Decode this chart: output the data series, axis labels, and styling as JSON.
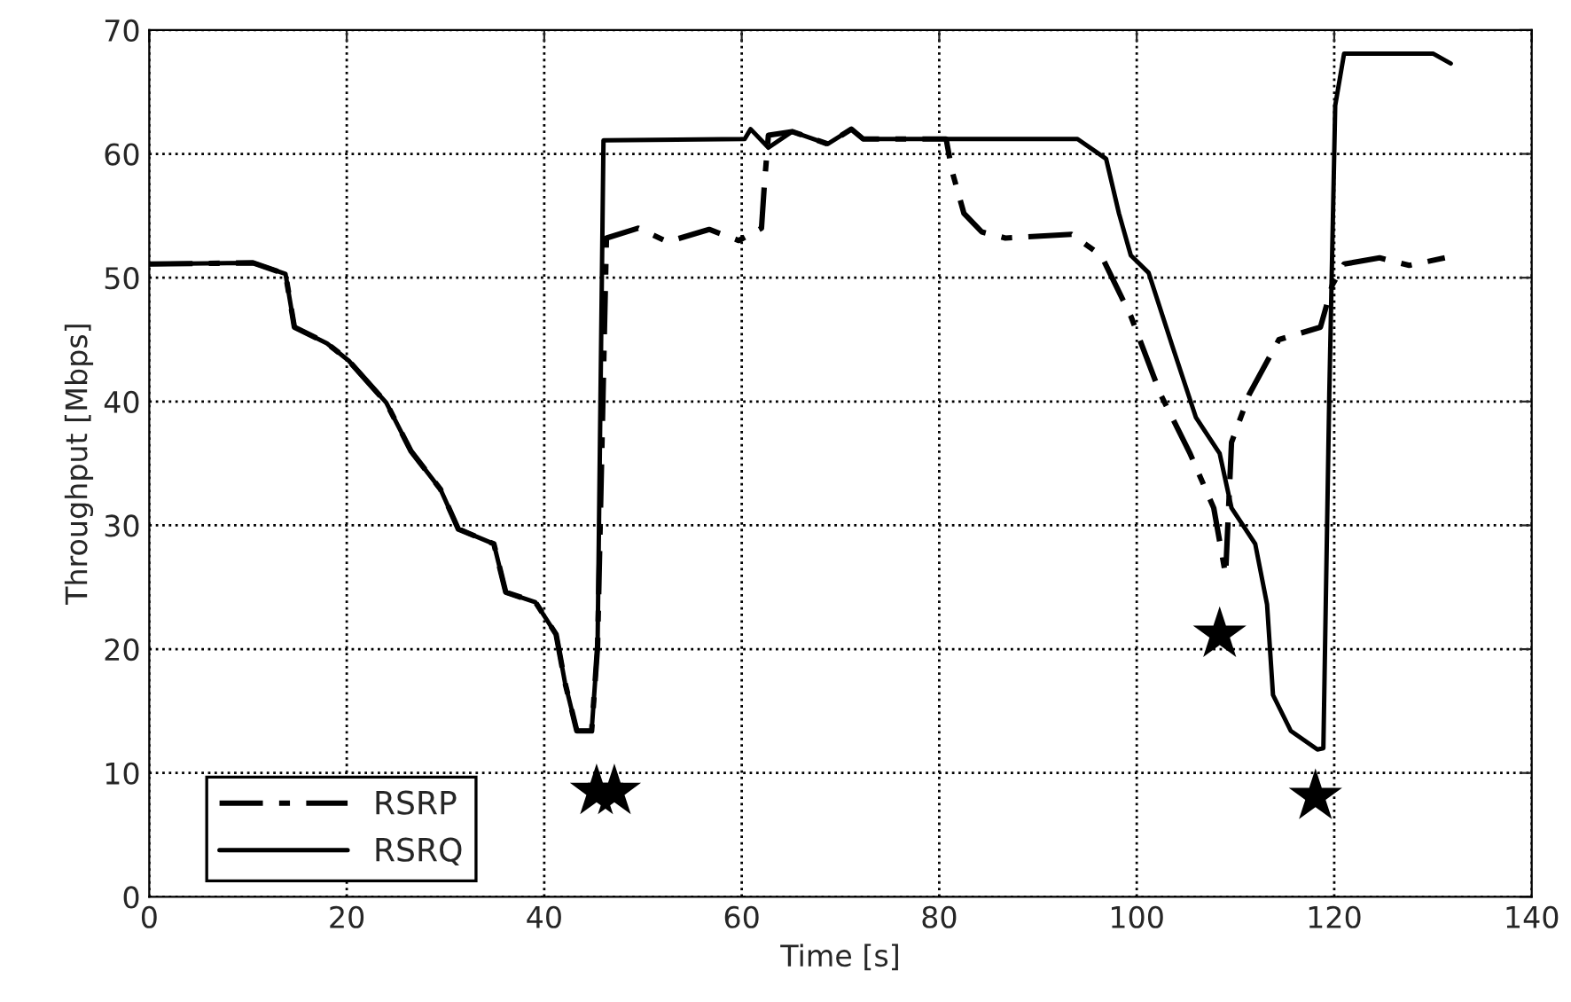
{
  "chart_data": {
    "type": "line",
    "xlabel": "Time [s]",
    "ylabel": "Throughput [Mbps]",
    "xlim": [
      0,
      140
    ],
    "xticks": [
      0,
      20,
      40,
      60,
      80,
      100,
      120,
      140
    ],
    "ylim": [
      0,
      70
    ],
    "yticks": [
      0,
      10,
      20,
      30,
      40,
      50,
      60,
      70
    ],
    "grid": true,
    "legend": "bottom left",
    "series": [
      {
        "name": "RSRP",
        "color": "#000000",
        "line_style": "dashdot",
        "x": [
          0,
          10.5,
          13.8,
          14.7,
          18,
          20.2,
          24,
          26.5,
          29.5,
          31.3,
          34.9,
          36.1,
          39.1,
          41.2,
          42.1,
          43.3,
          44.8,
          45.4,
          46.3,
          49.5,
          52.5,
          56.7,
          59.7,
          62.0,
          62.3,
          62.7,
          65.1,
          68.7,
          71.1,
          72.3,
          80.7,
          81.3,
          82.5,
          84.3,
          86.7,
          93.4,
          96.4,
          99.4,
          102.4,
          105.4,
          107.8,
          109.0,
          109.6,
          111.4,
          114.4,
          118.6,
          119.8,
          121.0,
          124.6,
          127.6,
          131.2
        ],
        "values": [
          51.1,
          51.2,
          50.3,
          46.0,
          44.7,
          43.3,
          39.9,
          36.0,
          32.9,
          29.7,
          28.5,
          24.6,
          23.8,
          21.2,
          17.3,
          13.4,
          13.4,
          20.2,
          53.2,
          54.0,
          52.9,
          53.9,
          53.0,
          54.0,
          57.6,
          61.5,
          61.8,
          60.8,
          62.0,
          61.2,
          61.2,
          58.6,
          55.2,
          53.7,
          53.2,
          53.5,
          51.8,
          46.9,
          40.6,
          35.8,
          31.4,
          26.0,
          36.7,
          40.6,
          45.0,
          46.0,
          49.4,
          51.1,
          51.6,
          51.0,
          51.6
        ]
      },
      {
        "name": "RSRQ",
        "color": "#000000",
        "line_style": "solid",
        "x": [
          0,
          10.5,
          13.8,
          14.7,
          18,
          20.2,
          24,
          26.5,
          29.5,
          31.3,
          34.9,
          36.1,
          39.1,
          41.2,
          42.1,
          43.3,
          44.8,
          45.4,
          46.0,
          60.3,
          60.9,
          62.7,
          65.1,
          68.7,
          71.1,
          72.3,
          94.0,
          96.9,
          98.2,
          99.4,
          101.2,
          103.6,
          106.0,
          108.4,
          109.6,
          112.0,
          113.2,
          113.8,
          115.6,
          118.3,
          118.9,
          119.5,
          120.1,
          121.0,
          130.0,
          131.8
        ],
        "values": [
          51.1,
          51.2,
          50.3,
          46.0,
          44.7,
          43.3,
          39.9,
          36.0,
          32.9,
          29.7,
          28.5,
          24.6,
          23.8,
          21.2,
          17.3,
          13.4,
          13.4,
          20.2,
          61.1,
          61.2,
          62.0,
          60.5,
          61.8,
          60.8,
          62.0,
          61.2,
          61.2,
          59.6,
          55.2,
          51.8,
          50.4,
          44.5,
          38.7,
          35.8,
          31.4,
          28.5,
          23.6,
          16.3,
          13.4,
          11.9,
          12.0,
          40.6,
          63.9,
          68.1,
          68.1,
          67.3
        ]
      },
      {
        "type": "scatter",
        "marker": "star",
        "color": "#000000",
        "x": [
          45.3,
          47.1,
          108.4,
          118.1
        ],
        "values": [
          8.5,
          8.5,
          21.2,
          8.1
        ]
      }
    ]
  }
}
